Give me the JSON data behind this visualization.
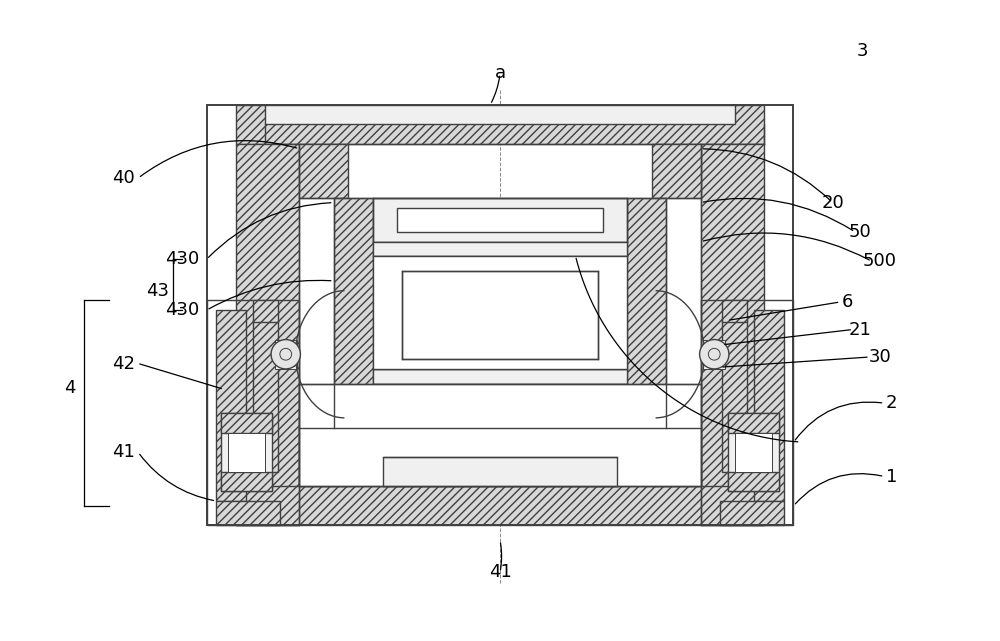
{
  "bg_color": "#ffffff",
  "lc": "#404040",
  "fig_width": 10.0,
  "fig_height": 6.41,
  "hatch_fc": "#d8d8d8",
  "white": "#ffffff",
  "light_gray": "#f0f0f0"
}
